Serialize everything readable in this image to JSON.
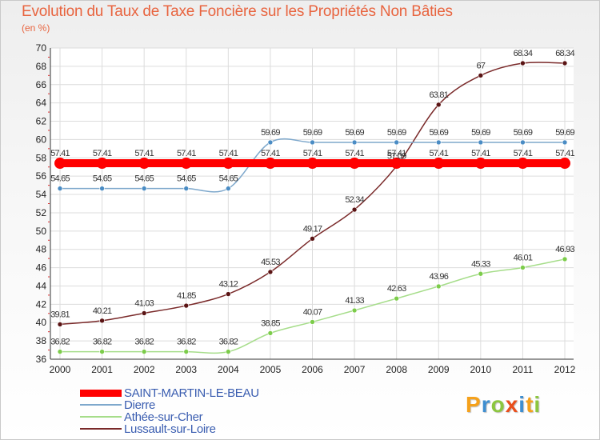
{
  "chart_data": {
    "type": "line",
    "title": "Evolution du Taux de Taxe Foncière sur les Propriétés Non Bâties",
    "subtitle": "(en %)",
    "xlabel": "",
    "ylabel": "(en %)",
    "ylim": [
      36,
      70
    ],
    "yticks": [
      36,
      38,
      40,
      42,
      44,
      46,
      48,
      50,
      52,
      54,
      56,
      58,
      60,
      62,
      64,
      66,
      68,
      70
    ],
    "categories": [
      "2000",
      "2001",
      "2002",
      "2003",
      "2004",
      "2005",
      "2006",
      "2007",
      "2008",
      "2009",
      "2010",
      "2011",
      "2012"
    ],
    "series": [
      {
        "name": "SAINT-MARTIN-LE-BEAU",
        "color": "#ff0000",
        "values": [
          57.41,
          57.41,
          57.41,
          57.41,
          57.41,
          57.41,
          57.41,
          57.41,
          57.41,
          57.41,
          57.41,
          57.41,
          57.41
        ],
        "labels": [
          "57.41",
          "57.41",
          "57.41",
          "57.41",
          "57.41",
          "57.41",
          "57.41",
          "57.41",
          "57.41",
          "57.41",
          "57.41",
          "57.41",
          "57.41"
        ]
      },
      {
        "name": "Dierre",
        "color": "#7ea8cc",
        "marker": "#4a8cc4",
        "values": [
          54.65,
          54.65,
          54.65,
          54.65,
          54.65,
          59.69,
          59.69,
          59.69,
          59.69,
          59.69,
          59.69,
          59.69,
          59.69
        ],
        "labels": [
          "54.65",
          "54.65",
          "54.65",
          "54.65",
          "54.65",
          "59.69",
          "59.69",
          "59.69",
          "59.69",
          "59.69",
          "59.69",
          "59.69",
          "59.69"
        ]
      },
      {
        "name": "Athée-sur-Cher",
        "color": "#a6dd8a",
        "marker": "#7ccc4a",
        "values": [
          36.82,
          36.82,
          36.82,
          36.82,
          36.82,
          38.85,
          40.07,
          41.33,
          42.63,
          43.96,
          45.33,
          46.01,
          46.93
        ],
        "labels": [
          "36.82",
          "36.82",
          "36.82",
          "36.82",
          "36.82",
          "38.85",
          "40.07",
          "41.33",
          "42.63",
          "43.96",
          "45.33",
          "46.01",
          "46.93"
        ]
      },
      {
        "name": "Lussault-sur-Loire",
        "color": "#7a2a2a",
        "marker": "#5a1414",
        "values": [
          39.81,
          40.21,
          41.03,
          41.85,
          43.12,
          45.53,
          49.17,
          52.34,
          57.09,
          63.81,
          67,
          68.34,
          68.34
        ],
        "labels": [
          "39.81",
          "40.21",
          "41.03",
          "41.85",
          "43.12",
          "45.53",
          "49.17",
          "52.34",
          "57.09",
          "63.81",
          "67",
          "68.34",
          "68.34"
        ]
      }
    ],
    "legend_position": "bottom-left",
    "grid": true
  },
  "logo": {
    "letters": [
      "P",
      "r",
      "o",
      "x",
      "i",
      "t",
      "i"
    ],
    "colors": [
      "#f5a11b",
      "#3e8ed0",
      "#8cc63f",
      "#e94e1b",
      "#3e8ed0",
      "#f5a11b",
      "#8cc63f"
    ]
  }
}
